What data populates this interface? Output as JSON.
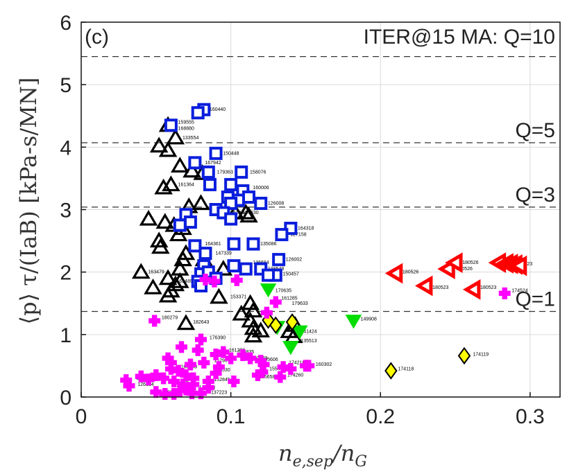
{
  "chart_data": {
    "type": "scatter",
    "panel": "(c)",
    "scenario": "ITER@15 MA: Q=10",
    "xlabel": "n_{e,sep}/n_G",
    "ylabel": "⟨p⟩ τ/(IaB) [kPa-s/MN]",
    "xlim": [
      0,
      0.32
    ],
    "ylim": [
      0,
      6
    ],
    "xticks": [
      "0",
      "0.1",
      "0.2",
      "0.3"
    ],
    "yticks": [
      "0",
      "1",
      "2",
      "3",
      "4",
      "5",
      "6"
    ],
    "grid": true,
    "reference_lines": [
      {
        "label": "Q=10",
        "y": 5.45
      },
      {
        "label": "Q=5",
        "y": 4.07
      },
      {
        "label": "Q=3",
        "y": 3.04
      },
      {
        "label": "Q=1",
        "y": 1.37
      }
    ],
    "series": [
      {
        "marker": "triangle-up",
        "color": "#000000",
        "points": [
          [
            0.058,
            4.35
          ],
          [
            0.063,
            4.15
          ],
          [
            0.052,
            4.02
          ],
          [
            0.058,
            3.95
          ],
          [
            0.066,
            3.7
          ],
          [
            0.074,
            3.62
          ],
          [
            0.081,
            3.58
          ],
          [
            0.06,
            3.4
          ],
          [
            0.055,
            3.35
          ],
          [
            0.08,
            3.1
          ],
          [
            0.072,
            3.05
          ],
          [
            0.11,
            2.95
          ],
          [
            0.045,
            2.85
          ],
          [
            0.056,
            2.8
          ],
          [
            0.062,
            2.75
          ],
          [
            0.068,
            2.7
          ],
          [
            0.065,
            2.6
          ],
          [
            0.052,
            2.5
          ],
          [
            0.053,
            2.4
          ],
          [
            0.07,
            2.3
          ],
          [
            0.068,
            2.2
          ],
          [
            0.066,
            2.05
          ],
          [
            0.082,
            2.2
          ],
          [
            0.095,
            2.05
          ],
          [
            0.04,
            2.0
          ],
          [
            0.058,
            1.9
          ],
          [
            0.066,
            1.85
          ],
          [
            0.063,
            1.8
          ],
          [
            0.048,
            1.75
          ],
          [
            0.06,
            1.7
          ],
          [
            0.058,
            1.62
          ],
          [
            0.092,
            1.6
          ],
          [
            0.113,
            1.5
          ],
          [
            0.115,
            1.38
          ],
          [
            0.107,
            1.33
          ],
          [
            0.113,
            1.22
          ],
          [
            0.115,
            1.1
          ],
          [
            0.12,
            1.06
          ],
          [
            0.115,
            0.98
          ],
          [
            0.07,
            1.18
          ],
          [
            0.139,
            1.05
          ],
          [
            0.142,
            0.97
          ],
          [
            0.143,
            1.15
          ],
          [
            0.112,
            2.9
          ],
          [
            0.103,
            2.95
          ]
        ]
      },
      {
        "marker": "square",
        "color": "#0a1edc",
        "points": [
          [
            0.082,
            4.6
          ],
          [
            0.078,
            4.55
          ],
          [
            0.06,
            4.35
          ],
          [
            0.09,
            3.9
          ],
          [
            0.076,
            3.75
          ],
          [
            0.085,
            3.6
          ],
          [
            0.107,
            3.6
          ],
          [
            0.086,
            3.4
          ],
          [
            0.1,
            3.4
          ],
          [
            0.108,
            3.3
          ],
          [
            0.098,
            3.2
          ],
          [
            0.112,
            3.2
          ],
          [
            0.105,
            3.15
          ],
          [
            0.1,
            3.1
          ],
          [
            0.12,
            3.1
          ],
          [
            0.09,
            3.0
          ],
          [
            0.07,
            2.92
          ],
          [
            0.095,
            2.95
          ],
          [
            0.1,
            2.85
          ],
          [
            0.073,
            2.8
          ],
          [
            0.066,
            2.75
          ],
          [
            0.14,
            2.7
          ],
          [
            0.134,
            2.6
          ],
          [
            0.102,
            2.45
          ],
          [
            0.115,
            2.45
          ],
          [
            0.076,
            2.42
          ],
          [
            0.083,
            2.3
          ],
          [
            0.132,
            2.2
          ],
          [
            0.082,
            2.1
          ],
          [
            0.102,
            2.1
          ],
          [
            0.11,
            2.05
          ],
          [
            0.12,
            2.05
          ],
          [
            0.08,
            1.97
          ],
          [
            0.13,
            1.95
          ],
          [
            0.078,
            1.85
          ],
          [
            0.08,
            1.78
          ],
          [
            0.085,
            2.0
          ],
          [
            0.09,
            1.9
          ],
          [
            0.125,
            1.95
          ]
        ]
      },
      {
        "marker": "triangle-left",
        "color": "#ff0000",
        "points": [
          [
            0.21,
            1.98
          ],
          [
            0.23,
            1.78
          ],
          [
            0.245,
            2.05
          ],
          [
            0.25,
            2.15
          ],
          [
            0.262,
            1.72
          ],
          [
            0.279,
            2.15
          ],
          [
            0.284,
            2.14
          ],
          [
            0.287,
            2.13
          ],
          [
            0.29,
            2.12
          ],
          [
            0.293,
            2.1
          ]
        ]
      },
      {
        "marker": "triangle-down",
        "color": "#00dd00",
        "points": [
          [
            0.125,
            1.72
          ],
          [
            0.182,
            1.22
          ],
          [
            0.14,
            0.8
          ],
          [
            0.131,
            1.12
          ],
          [
            0.146,
            1.05
          ]
        ]
      },
      {
        "marker": "diamond",
        "color": "#ffff00",
        "points": [
          [
            0.125,
            1.23
          ],
          [
            0.13,
            1.15
          ],
          [
            0.141,
            1.2
          ],
          [
            0.207,
            0.42
          ],
          [
            0.256,
            0.66
          ]
        ]
      },
      {
        "marker": "plus",
        "color": "#ff00ff",
        "points": [
          [
            0.049,
            1.22
          ],
          [
            0.104,
            1.87
          ],
          [
            0.13,
            1.52
          ],
          [
            0.124,
            1.35
          ],
          [
            0.08,
            0.92
          ],
          [
            0.067,
            0.8
          ],
          [
            0.078,
            0.75
          ],
          [
            0.095,
            0.72
          ],
          [
            0.09,
            0.68
          ],
          [
            0.1,
            0.62
          ],
          [
            0.108,
            0.67
          ],
          [
            0.113,
            0.62
          ],
          [
            0.12,
            0.58
          ],
          [
            0.122,
            0.52
          ],
          [
            0.135,
            0.48
          ],
          [
            0.15,
            0.5
          ],
          [
            0.14,
            0.45
          ],
          [
            0.121,
            0.4
          ],
          [
            0.118,
            0.35
          ],
          [
            0.133,
            0.32
          ],
          [
            0.102,
            0.25
          ],
          [
            0.073,
            0.52
          ],
          [
            0.082,
            0.55
          ],
          [
            0.06,
            0.45
          ],
          [
            0.065,
            0.42
          ],
          [
            0.07,
            0.35
          ],
          [
            0.075,
            0.3
          ],
          [
            0.085,
            0.25
          ],
          [
            0.05,
            0.35
          ],
          [
            0.055,
            0.3
          ],
          [
            0.045,
            0.28
          ],
          [
            0.04,
            0.33
          ],
          [
            0.03,
            0.27
          ],
          [
            0.032,
            0.18
          ],
          [
            0.05,
            0.08
          ],
          [
            0.056,
            0.05
          ],
          [
            0.062,
            0.05
          ],
          [
            0.066,
            0.1
          ],
          [
            0.07,
            0.12
          ],
          [
            0.074,
            0.06
          ],
          [
            0.08,
            0.06
          ],
          [
            0.085,
            0.15
          ],
          [
            0.075,
            0.2
          ],
          [
            0.062,
            0.25
          ],
          [
            0.068,
            0.2
          ],
          [
            0.09,
            0.38
          ],
          [
            0.092,
            0.48
          ],
          [
            0.06,
            0.55
          ],
          [
            0.058,
            0.62
          ],
          [
            0.152,
            0.5
          ],
          [
            0.283,
            1.66
          ],
          [
            0.089,
            1.85
          ],
          [
            0.083,
            1.88
          ]
        ]
      }
    ],
    "point_labels": [
      {
        "x": 0.082,
        "y": 4.6,
        "text": "160440"
      },
      {
        "x": 0.061,
        "y": 4.4,
        "text": "159555"
      },
      {
        "x": 0.061,
        "y": 4.3,
        "text": "168880"
      },
      {
        "x": 0.064,
        "y": 4.15,
        "text": "133554"
      },
      {
        "x": 0.091,
        "y": 3.9,
        "text": "150448"
      },
      {
        "x": 0.079,
        "y": 3.75,
        "text": "167942"
      },
      {
        "x": 0.087,
        "y": 3.6,
        "text": "179363"
      },
      {
        "x": 0.109,
        "y": 3.6,
        "text": "158076"
      },
      {
        "x": 0.061,
        "y": 3.4,
        "text": "161364"
      },
      {
        "x": 0.111,
        "y": 3.35,
        "text": "160006"
      },
      {
        "x": 0.121,
        "y": 3.1,
        "text": "126008"
      },
      {
        "x": 0.096,
        "y": 2.95,
        "text": "161284"
      },
      {
        "x": 0.104,
        "y": 2.95,
        "text": "147330"
      },
      {
        "x": 0.141,
        "y": 2.7,
        "text": "164318"
      },
      {
        "x": 0.136,
        "y": 2.6,
        "text": "127158"
      },
      {
        "x": 0.079,
        "y": 2.45,
        "text": "164361"
      },
      {
        "x": 0.116,
        "y": 2.45,
        "text": "135086"
      },
      {
        "x": 0.086,
        "y": 2.3,
        "text": "147339"
      },
      {
        "x": 0.133,
        "y": 2.2,
        "text": "126002"
      },
      {
        "x": 0.111,
        "y": 2.15,
        "text": "136684"
      },
      {
        "x": 0.121,
        "y": 2.05,
        "text": "138548"
      },
      {
        "x": 0.131,
        "y": 1.97,
        "text": "150457"
      },
      {
        "x": 0.041,
        "y": 2.0,
        "text": "163479"
      },
      {
        "x": 0.06,
        "y": 1.85,
        "text": "163489"
      },
      {
        "x": 0.096,
        "y": 1.6,
        "text": "153371"
      },
      {
        "x": 0.126,
        "y": 1.7,
        "text": "170635"
      },
      {
        "x": 0.13,
        "y": 1.58,
        "text": "161285"
      },
      {
        "x": 0.137,
        "y": 1.5,
        "text": "179633"
      },
      {
        "x": 0.05,
        "y": 1.27,
        "text": "180279"
      },
      {
        "x": 0.071,
        "y": 1.2,
        "text": "182643"
      },
      {
        "x": 0.082,
        "y": 0.95,
        "text": "176390"
      },
      {
        "x": 0.183,
        "y": 1.25,
        "text": "149908"
      },
      {
        "x": 0.143,
        "y": 1.05,
        "text": "141424"
      },
      {
        "x": 0.143,
        "y": 0.9,
        "text": "135513"
      },
      {
        "x": 0.135,
        "y": 0.55,
        "text": "174210"
      },
      {
        "x": 0.153,
        "y": 0.52,
        "text": "160302"
      },
      {
        "x": 0.134,
        "y": 0.35,
        "text": "174260"
      },
      {
        "x": 0.122,
        "y": 0.45,
        "text": "155412"
      },
      {
        "x": 0.115,
        "y": 0.32,
        "text": "155658"
      },
      {
        "x": 0.11,
        "y": 0.62,
        "text": "150623"
      },
      {
        "x": 0.117,
        "y": 0.6,
        "text": "155606"
      },
      {
        "x": 0.095,
        "y": 0.75,
        "text": "161208"
      },
      {
        "x": 0.101,
        "y": 0.72,
        "text": "158835"
      },
      {
        "x": 0.085,
        "y": 0.58,
        "text": "152967"
      },
      {
        "x": 0.063,
        "y": 0.48,
        "text": "162498"
      },
      {
        "x": 0.085,
        "y": 0.43,
        "text": "155530"
      },
      {
        "x": 0.085,
        "y": 0.28,
        "text": "152845"
      },
      {
        "x": 0.033,
        "y": 0.3,
        "text": "126665"
      },
      {
        "x": 0.034,
        "y": 0.2,
        "text": "126334"
      },
      {
        "x": 0.057,
        "y": 0.22,
        "text": "158888"
      },
      {
        "x": 0.052,
        "y": 0.07,
        "text": "158888"
      },
      {
        "x": 0.083,
        "y": 0.07,
        "text": "137223"
      },
      {
        "x": 0.075,
        "y": 0.15,
        "text": "137223"
      },
      {
        "x": 0.208,
        "y": 0.45,
        "text": "174118"
      },
      {
        "x": 0.258,
        "y": 0.68,
        "text": "174119"
      },
      {
        "x": 0.211,
        "y": 2.0,
        "text": "180526"
      },
      {
        "x": 0.231,
        "y": 1.75,
        "text": "180523"
      },
      {
        "x": 0.247,
        "y": 2.05,
        "text": "180526"
      },
      {
        "x": 0.251,
        "y": 2.15,
        "text": "180526"
      },
      {
        "x": 0.263,
        "y": 1.75,
        "text": "180523"
      },
      {
        "x": 0.287,
        "y": 2.13,
        "text": "180523"
      },
      {
        "x": 0.284,
        "y": 1.7,
        "text": "174524"
      }
    ]
  }
}
